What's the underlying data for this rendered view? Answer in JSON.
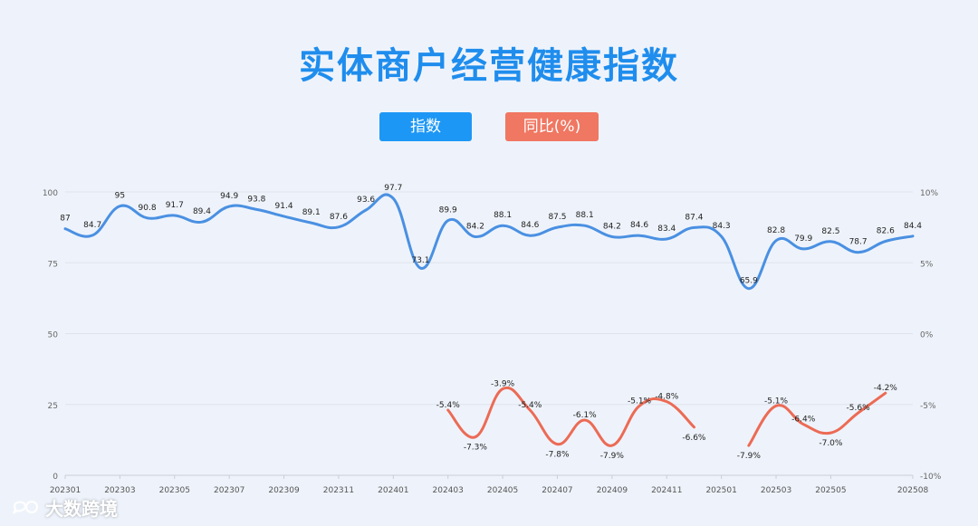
{
  "title": "实体商户经营健康指数",
  "legend": {
    "index_label": "指数",
    "yoy_label": "同比(%)"
  },
  "colors": {
    "index": "#4a90e2",
    "yoy": "#ec6b55",
    "title": "#1f8ded"
  },
  "watermark": "大数跨境",
  "chart_data": {
    "type": "line",
    "title": "实体商户经营健康指数",
    "x": [
      "202301",
      "202302",
      "202303",
      "202304",
      "202305",
      "202306",
      "202307",
      "202308",
      "202309",
      "202310",
      "202311",
      "202312",
      "202401",
      "202402",
      "202403",
      "202404",
      "202405",
      "202406",
      "202407",
      "202408",
      "202409",
      "202410",
      "202411",
      "202412",
      "202501",
      "202502",
      "202503",
      "202504",
      "202505",
      "202506",
      "202507",
      "202508"
    ],
    "x_tick_labels": [
      "202301",
      "202303",
      "202305",
      "202307",
      "202309",
      "202311",
      "202401",
      "202403",
      "202405",
      "202407",
      "202409",
      "202411",
      "202501",
      "202503",
      "202505",
      "202508"
    ],
    "y_left": {
      "ticks": [
        "0",
        "25",
        "50",
        "75",
        "100"
      ],
      "ylim": [
        0,
        100
      ]
    },
    "y_right": {
      "ticks": [
        "-10%",
        "-5%",
        "0%",
        "5%",
        "10%"
      ],
      "ylim": [
        -10,
        10
      ]
    },
    "grid": true,
    "legend_position": "top-center",
    "series": [
      {
        "name": "指数",
        "axis": "left",
        "values": [
          87,
          84.7,
          95,
          90.8,
          91.7,
          89.4,
          94.9,
          93.8,
          91.4,
          89.1,
          87.6,
          93.6,
          97.7,
          73.1,
          89.9,
          84.2,
          88.1,
          84.6,
          87.5,
          88.1,
          84.2,
          84.6,
          83.4,
          87.4,
          84.3,
          65.9,
          82.8,
          79.9,
          82.5,
          78.7,
          82.6,
          84.4
        ],
        "labels": [
          "87",
          "84.7",
          "95",
          "90.8",
          "91.7",
          "89.4",
          "94.9",
          "93.8",
          "91.4",
          "89.1",
          "87.6",
          "93.6",
          "97.7",
          "73.1",
          "89.9",
          "84.2",
          "88.1",
          "84.6",
          "87.5",
          "88.1",
          "84.2",
          "84.6",
          "83.4",
          "87.4",
          "84.3",
          "65.9",
          "82.8",
          "79.9",
          "82.5",
          "78.7",
          "82.6",
          "84.4"
        ]
      },
      {
        "name": "同比(%)",
        "axis": "right",
        "values": [
          null,
          null,
          null,
          null,
          null,
          null,
          null,
          null,
          null,
          null,
          null,
          null,
          null,
          null,
          -5.4,
          -7.3,
          -3.9,
          -5.4,
          -7.8,
          -6.1,
          -7.9,
          -5.1,
          -4.8,
          -6.6,
          null,
          -7.9,
          -5.1,
          -6.4,
          -7.0,
          -5.6,
          -4.2,
          null
        ],
        "labels": [
          null,
          null,
          null,
          null,
          null,
          null,
          null,
          null,
          null,
          null,
          null,
          null,
          null,
          null,
          "-5.4%",
          "-7.3%",
          "-3.9%",
          "-5.4%",
          "-7.8%",
          "-6.1%",
          "-7.9%",
          "-5.1%",
          "-4.8%",
          "-6.6%",
          null,
          "-7.9%",
          "-5.1%",
          "-6.4%",
          "-7.0%",
          "-5.6%",
          "-4.2%",
          null
        ]
      }
    ]
  }
}
